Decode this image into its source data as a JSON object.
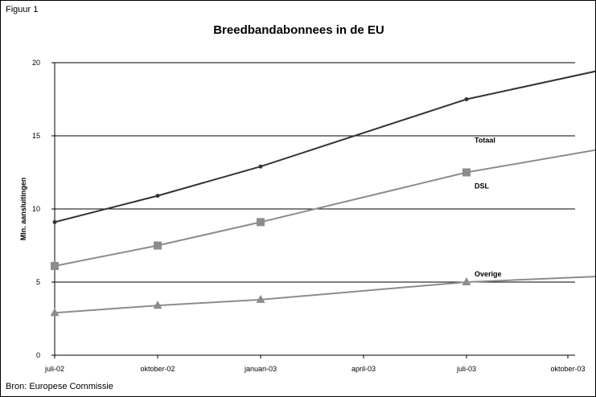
{
  "figure_label": "Figuur 1",
  "source_note": "Bron: Europese Commissie",
  "chart_data": {
    "type": "line",
    "title": "Breedbandabonnees in de EU",
    "xlabel": "",
    "ylabel": "Mln. aansluitingen",
    "ylim": [
      0,
      20
    ],
    "yticks": [
      0,
      5,
      10,
      15,
      20
    ],
    "grid": true,
    "x_tick_labels": [
      "juli-02",
      "oktober-02",
      "januari-03",
      "april-03",
      "juli-03",
      "oktober-03"
    ],
    "series": [
      {
        "name": "Totaal",
        "marker": "circle",
        "color": "#333333",
        "x": [
          "2002-07",
          "2002-10",
          "2003-01",
          "2003-07",
          "2003-11"
        ],
        "values": [
          9.1,
          10.9,
          12.9,
          17.5,
          19.5
        ]
      },
      {
        "name": "DSL",
        "marker": "square",
        "color": "#8c8c8c",
        "x": [
          "2002-07",
          "2002-10",
          "2003-01",
          "2003-07",
          "2003-11"
        ],
        "values": [
          6.1,
          7.5,
          9.1,
          12.5,
          14.1
        ]
      },
      {
        "name": "Overige",
        "marker": "triangle",
        "color": "#8c8c8c",
        "x": [
          "2002-07",
          "2002-10",
          "2003-01",
          "2003-07",
          "2003-11"
        ],
        "values": [
          2.9,
          3.4,
          3.8,
          5.0,
          5.4
        ]
      }
    ]
  }
}
